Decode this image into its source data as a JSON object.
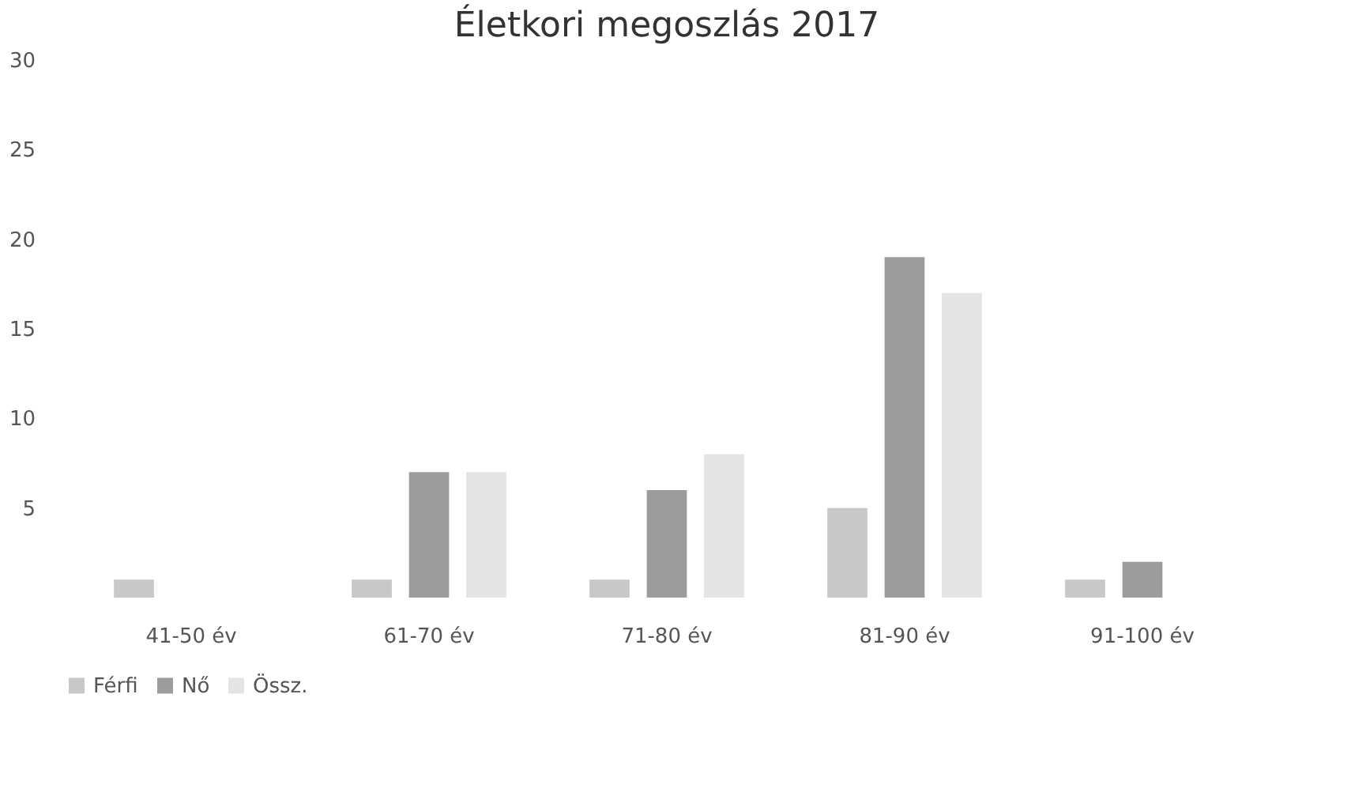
{
  "chart_data": {
    "type": "bar",
    "title": "Életkori megoszlás 2017",
    "categories": [
      "41-50 év",
      "61-70 év",
      "71-80 év",
      "81-90 év",
      "91-100 év"
    ],
    "series": [
      {
        "name": "Férfi",
        "color": "#c8c8c8",
        "values": [
          1,
          1,
          1,
          5,
          1
        ]
      },
      {
        "name": "Nő",
        "color": "#9c9c9c",
        "values": [
          null,
          7,
          6,
          19,
          2
        ]
      },
      {
        "name": "Össz.",
        "color": "#e4e4e4",
        "values": [
          null,
          7,
          8,
          17,
          null
        ]
      }
    ],
    "ylim": [
      0,
      30
    ],
    "yticks": [
      5,
      10,
      15,
      20,
      25,
      30
    ],
    "grid": false,
    "legend": "bottom"
  }
}
